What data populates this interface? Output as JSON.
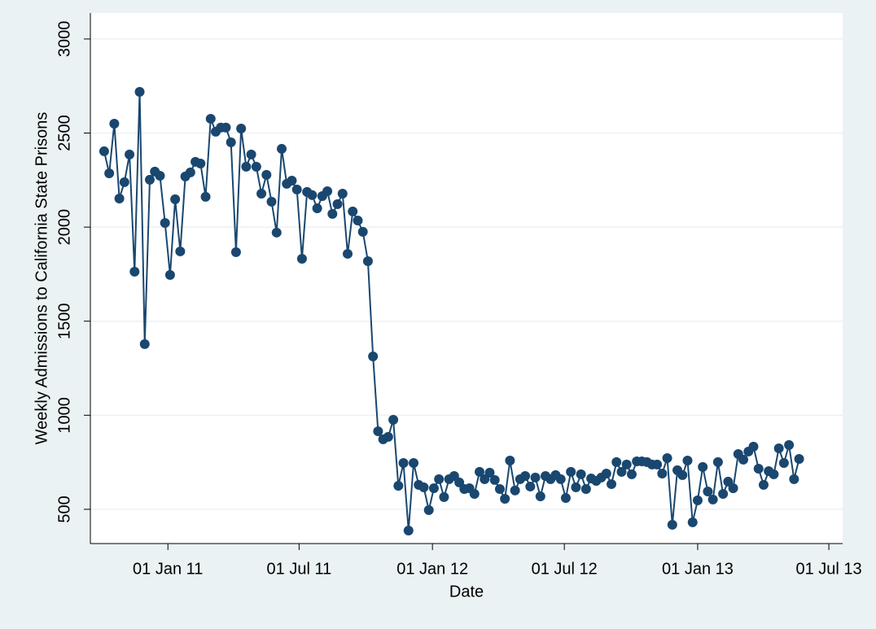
{
  "chart_data": {
    "type": "line",
    "x_label": "Date",
    "y_label": "Weekly Admissions to California State Prisons",
    "x": [
      "2010-10-05",
      "2010-10-12",
      "2010-10-19",
      "2010-10-26",
      "2010-11-02",
      "2010-11-09",
      "2010-11-16",
      "2010-11-23",
      "2010-11-30",
      "2010-12-07",
      "2010-12-14",
      "2010-12-21",
      "2010-12-28",
      "2011-01-04",
      "2011-01-11",
      "2011-01-18",
      "2011-01-25",
      "2011-02-01",
      "2011-02-08",
      "2011-02-15",
      "2011-02-22",
      "2011-03-01",
      "2011-03-08",
      "2011-03-15",
      "2011-03-22",
      "2011-03-29",
      "2011-04-05",
      "2011-04-12",
      "2011-04-19",
      "2011-04-26",
      "2011-05-03",
      "2011-05-10",
      "2011-05-17",
      "2011-05-24",
      "2011-05-31",
      "2011-06-07",
      "2011-06-14",
      "2011-06-21",
      "2011-06-28",
      "2011-07-05",
      "2011-07-12",
      "2011-07-19",
      "2011-07-26",
      "2011-08-02",
      "2011-08-09",
      "2011-08-16",
      "2011-08-23",
      "2011-08-30",
      "2011-09-06",
      "2011-09-13",
      "2011-09-20",
      "2011-09-27",
      "2011-10-04",
      "2011-10-11",
      "2011-10-18",
      "2011-10-25",
      "2011-11-01",
      "2011-11-08",
      "2011-11-15",
      "2011-11-22",
      "2011-11-29",
      "2011-12-06",
      "2011-12-13",
      "2011-12-20",
      "2011-12-27",
      "2012-01-03",
      "2012-01-10",
      "2012-01-17",
      "2012-01-24",
      "2012-01-31",
      "2012-02-07",
      "2012-02-14",
      "2012-02-21",
      "2012-02-28",
      "2012-03-06",
      "2012-03-13",
      "2012-03-20",
      "2012-03-27",
      "2012-04-03",
      "2012-04-10",
      "2012-04-17",
      "2012-04-24",
      "2012-05-01",
      "2012-05-08",
      "2012-05-15",
      "2012-05-22",
      "2012-05-29",
      "2012-06-05",
      "2012-06-12",
      "2012-06-19",
      "2012-06-26",
      "2012-07-03",
      "2012-07-10",
      "2012-07-17",
      "2012-07-24",
      "2012-07-31",
      "2012-08-07",
      "2012-08-14",
      "2012-08-21",
      "2012-08-28",
      "2012-09-04",
      "2012-09-11",
      "2012-09-18",
      "2012-09-25",
      "2012-10-02",
      "2012-10-09",
      "2012-10-16",
      "2012-10-23",
      "2012-10-30",
      "2012-11-06",
      "2012-11-13",
      "2012-11-20",
      "2012-11-27",
      "2012-12-04",
      "2012-12-11",
      "2012-12-18",
      "2012-12-25",
      "2013-01-01",
      "2013-01-08",
      "2013-01-15",
      "2013-01-22",
      "2013-01-29",
      "2013-02-05",
      "2013-02-12",
      "2013-02-19",
      "2013-02-26",
      "2013-03-05",
      "2013-03-12",
      "2013-03-19",
      "2013-03-26",
      "2013-04-02",
      "2013-04-09",
      "2013-04-16",
      "2013-04-23",
      "2013-04-30",
      "2013-05-07",
      "2013-05-14",
      "2013-05-21"
    ],
    "series": [
      {
        "color": "#1a476f",
        "values": [
          2403,
          2286,
          2550,
          2152,
          2239,
          2386,
          1763,
          2719,
          1378,
          2252,
          2295,
          2273,
          2022,
          1746,
          2148,
          1871,
          2269,
          2291,
          2347,
          2338,
          2161,
          2576,
          2507,
          2529,
          2529,
          2451,
          1867,
          2524,
          2321,
          2386,
          2321,
          2178,
          2278,
          2135,
          1971,
          2416,
          2230,
          2247,
          2200,
          1832,
          2187,
          2170,
          2100,
          2165,
          2191,
          2070,
          2122,
          2178,
          1858,
          2083,
          2035,
          1975,
          1819,
          1313,
          915,
          872,
          885,
          976,
          625,
          746,
          387,
          746,
          630,
          617,
          496,
          612,
          660,
          565,
          660,
          677,
          643,
          608,
          612,
          582,
          699,
          660,
          695,
          656,
          608,
          556,
          759,
          600,
          660,
          677,
          621,
          669,
          569,
          677,
          660,
          682,
          660,
          560,
          699,
          617,
          686,
          608,
          664,
          651,
          669,
          690,
          634,
          751,
          699,
          738,
          686,
          755,
          755,
          751,
          738,
          738,
          690,
          772,
          418,
          708,
          682,
          759,
          431,
          548,
          725,
          595,
          552,
          751,
          582,
          647,
          612,
          794,
          764,
          807,
          833,
          716,
          630,
          703,
          686,
          824,
          746,
          842,
          660,
          768
        ]
      }
    ],
    "xlim": [
      "2010-09-16",
      "2013-07-20"
    ],
    "xticks": [
      {
        "value": "2011-01-01",
        "label": "01 Jan 11"
      },
      {
        "value": "2011-07-01",
        "label": "01 Jul 11"
      },
      {
        "value": "2012-01-01",
        "label": "01 Jan 12"
      },
      {
        "value": "2012-07-01",
        "label": "01 Jul 12"
      },
      {
        "value": "2013-01-01",
        "label": "01 Jan 13"
      },
      {
        "value": "2013-07-01",
        "label": "01 Jul 13"
      }
    ],
    "ylim": [
      318,
      3138
    ],
    "yticks": [
      500,
      1000,
      1500,
      2000,
      2500,
      3000
    ],
    "grid": true
  }
}
